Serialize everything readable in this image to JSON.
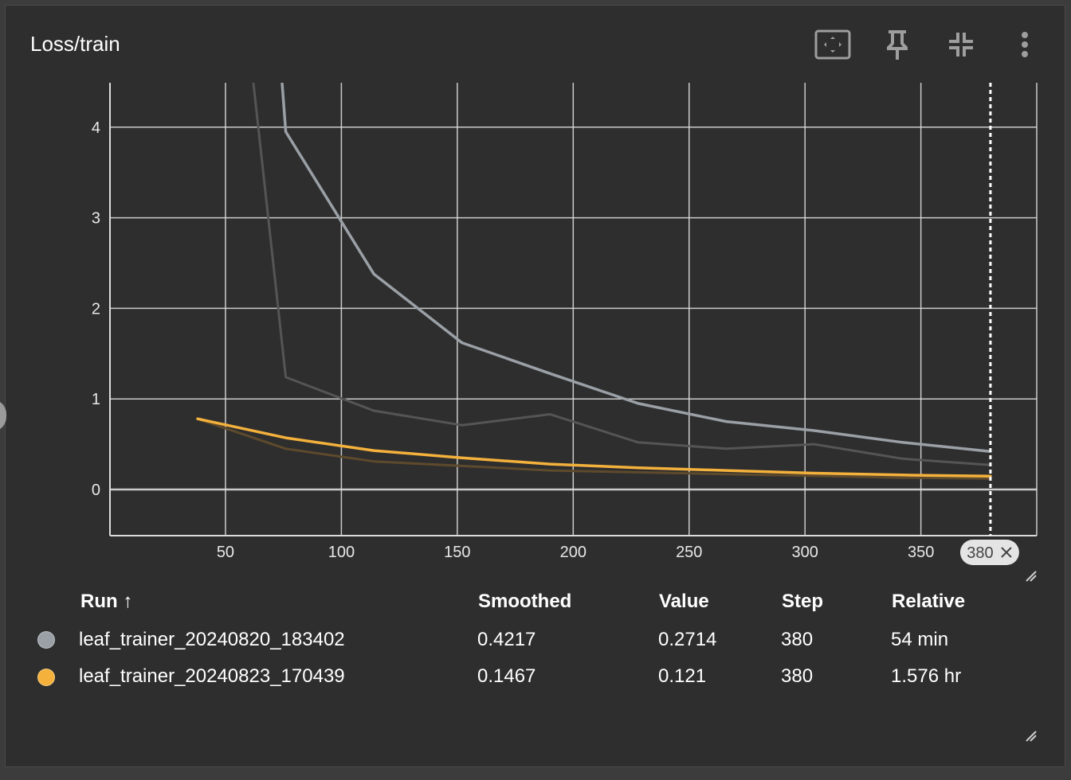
{
  "card": {
    "title": "Loss/train"
  },
  "toolbar": {
    "fit_icon": "fit-domain-icon",
    "pin_icon": "pin-icon",
    "collapse_icon": "collapse-icon",
    "more_icon": "more-vert-icon"
  },
  "colors": {
    "background": "#2e2e2e",
    "grid": "#dcdcdc",
    "run1": "#9aa0a6",
    "run1_raw": "#555555",
    "run2": "#f4b13c",
    "run2_raw": "#5e4a2c"
  },
  "chart_data": {
    "type": "line",
    "title": "Loss/train",
    "xlim": [
      0,
      400
    ],
    "ylim": [
      -0.5,
      4.5
    ],
    "x_ticks": [
      50,
      100,
      150,
      200,
      250,
      300,
      350
    ],
    "y_ticks": [
      0,
      1,
      2,
      3,
      4
    ],
    "grid": true,
    "hover_step": "380",
    "series": [
      {
        "name": "leaf_trainer_20240820_183402",
        "kind": "smoothed",
        "color": "#9aa0a6",
        "x": [
          76,
          114,
          152,
          190,
          228,
          266,
          304,
          342,
          380
        ],
        "y": [
          3.95,
          2.38,
          1.62,
          1.28,
          0.95,
          0.75,
          0.65,
          0.52,
          0.42
        ]
      },
      {
        "name": "leaf_trainer_20240820_183402",
        "kind": "raw",
        "color": "#555555",
        "x": [
          76,
          114,
          152,
          190,
          228,
          266,
          304,
          342,
          380
        ],
        "y": [
          1.24,
          0.87,
          0.71,
          0.83,
          0.52,
          0.45,
          0.5,
          0.34,
          0.27
        ]
      },
      {
        "name": "leaf_trainer_20240823_170439",
        "kind": "smoothed",
        "color": "#f4b13c",
        "x": [
          38,
          76,
          114,
          152,
          190,
          228,
          266,
          304,
          342,
          380
        ],
        "y": [
          0.78,
          0.57,
          0.43,
          0.35,
          0.28,
          0.24,
          0.21,
          0.18,
          0.16,
          0.147
        ]
      },
      {
        "name": "leaf_trainer_20240823_170439",
        "kind": "raw",
        "color": "#5e4a2c",
        "x": [
          38,
          76,
          114,
          152,
          190,
          228,
          266,
          304,
          342,
          380
        ],
        "y": [
          0.78,
          0.45,
          0.31,
          0.26,
          0.21,
          0.19,
          0.17,
          0.15,
          0.13,
          0.121
        ]
      }
    ]
  },
  "table": {
    "headers": {
      "run": "Run ↑",
      "smoothed": "Smoothed",
      "value": "Value",
      "step": "Step",
      "relative": "Relative"
    },
    "rows": [
      {
        "run": "leaf_trainer_20240820_183402",
        "smoothed": "0.4217",
        "value": "0.2714",
        "step": "380",
        "relative": "54 min",
        "color": "#9aa0a6"
      },
      {
        "run": "leaf_trainer_20240823_170439",
        "smoothed": "0.1467",
        "value": "0.121",
        "step": "380",
        "relative": "1.576 hr",
        "color": "#f4b13c"
      }
    ]
  }
}
